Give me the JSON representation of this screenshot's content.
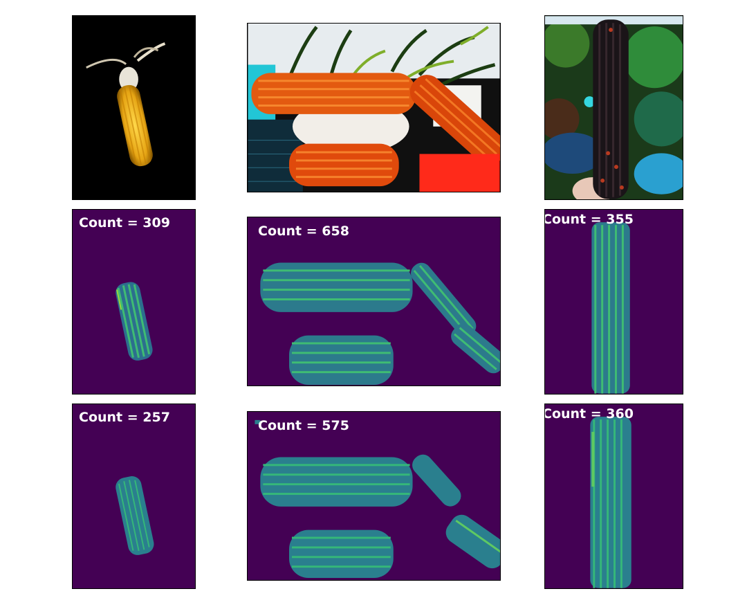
{
  "colors": {
    "density_bg": "#440154",
    "density_mid": "#2f8a8c",
    "density_high": "#7ad151",
    "photo_dark": "#000000"
  },
  "counts": {
    "row1_col1": "Count = 309",
    "row1_col2": "Count = 658",
    "row1_col3": "Count = 355",
    "row2_col1": "Count = 257",
    "row2_col2": "Count = 575",
    "row2_col3": "Count = 360"
  }
}
